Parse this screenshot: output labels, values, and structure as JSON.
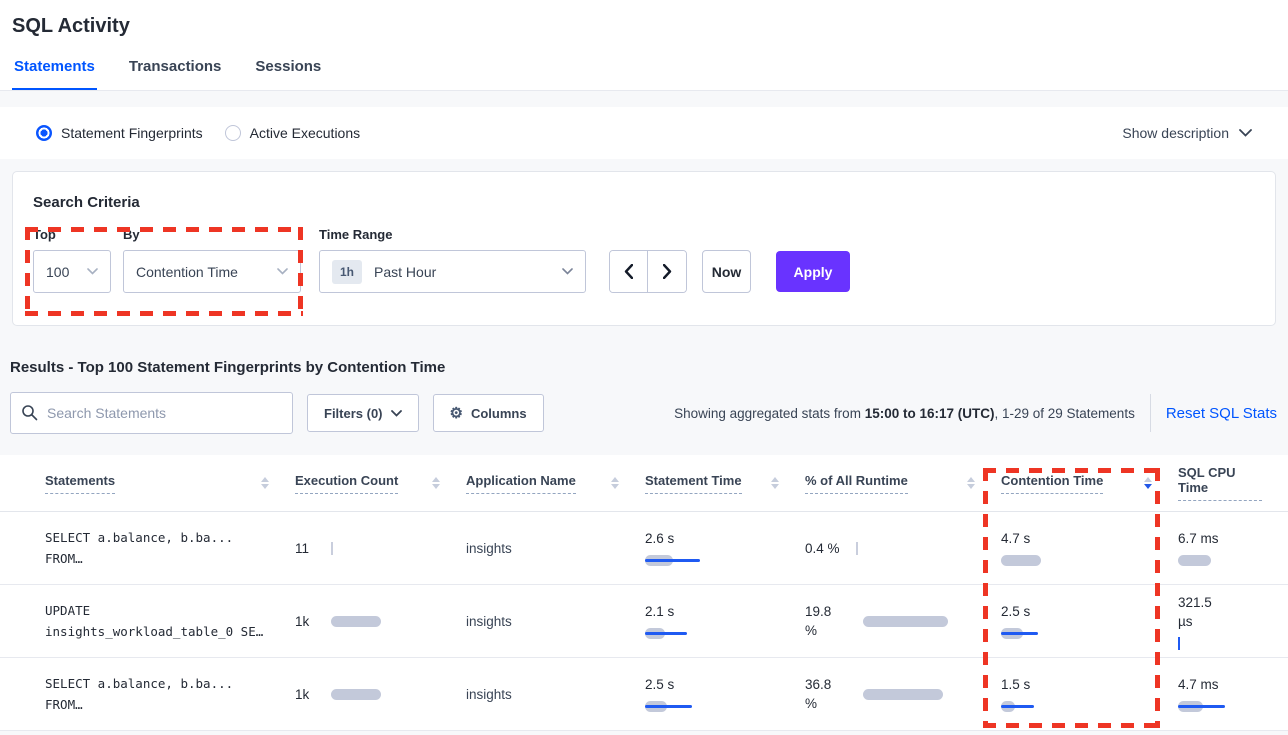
{
  "page_title": "SQL Activity",
  "tabs": [
    {
      "label": "Statements",
      "active": true
    },
    {
      "label": "Transactions",
      "active": false
    },
    {
      "label": "Sessions",
      "active": false
    }
  ],
  "view_toggle": {
    "options": [
      {
        "label": "Statement Fingerprints",
        "selected": true
      },
      {
        "label": "Active Executions",
        "selected": false
      }
    ],
    "show_description_label": "Show description"
  },
  "search_criteria": {
    "heading": "Search Criteria",
    "top_label": "Top",
    "top_value": "100",
    "by_label": "By",
    "by_value": "Contention Time",
    "time_range_label": "Time Range",
    "time_range_badge": "1h",
    "time_range_value": "Past Hour",
    "now_label": "Now",
    "apply_label": "Apply"
  },
  "results": {
    "heading": "Results - Top 100 Statement Fingerprints by Contention Time",
    "search_placeholder": "Search Statements",
    "filters_label": "Filters (0)",
    "columns_label": "Columns",
    "stats_prefix": "Showing aggregated stats from ",
    "stats_bold": "15:00 to 16:17 (UTC)",
    "stats_suffix": ", 1-29 of 29 Statements",
    "reset_label": "Reset SQL Stats"
  },
  "table": {
    "headers": [
      {
        "label": "Statements",
        "sort": "none"
      },
      {
        "label": "Execution Count",
        "sort": "none"
      },
      {
        "label": "Application Name",
        "sort": "none"
      },
      {
        "label": "Statement Time",
        "sort": "none"
      },
      {
        "label": "% of All Runtime",
        "sort": "none"
      },
      {
        "label": "Contention Time",
        "sort": "desc"
      },
      {
        "label": "SQL CPU Time",
        "sort": "none",
        "icon": false
      }
    ],
    "rows": [
      {
        "statement_line1": "SELECT a.balance, b.ba...",
        "statement_line2": "FROM…",
        "execution_count": "11",
        "execution_count_bar": {
          "tick": "gray"
        },
        "application_name": "insights",
        "statement_time": "2.6 s",
        "statement_time_bar": {
          "g": 28,
          "b": 55
        },
        "pct_of_runtime": "0.4 %",
        "pct_of_runtime_bar": {
          "tick": "gray"
        },
        "contention_time": "4.7 s",
        "contention_time_bar": {
          "g": 40,
          "b": 0
        },
        "sql_cpu_time": "6.7 ms",
        "sql_cpu_time_bar": {
          "g": 33,
          "b": 0
        }
      },
      {
        "statement_line1": "UPDATE",
        "statement_line2": "insights_workload_table_0 SE…",
        "execution_count": "1k",
        "execution_count_bar": {
          "g": 50,
          "b": 0
        },
        "application_name": "insights",
        "statement_time": "2.1 s",
        "statement_time_bar": {
          "g": 20,
          "b": 42
        },
        "pct_of_runtime": "19.8 %",
        "pct_of_runtime_bar": {
          "g": 85,
          "b": 0
        },
        "contention_time": "2.5 s",
        "contention_time_bar": {
          "g": 22,
          "b": 37
        },
        "sql_cpu_time": "321.5 µs",
        "sql_cpu_time_bar": {
          "tick": "blue"
        }
      },
      {
        "statement_line1": "SELECT a.balance, b.ba...",
        "statement_line2": "FROM…",
        "execution_count": "1k",
        "execution_count_bar": {
          "g": 50,
          "b": 0
        },
        "application_name": "insights",
        "statement_time": "2.5 s",
        "statement_time_bar": {
          "g": 22,
          "b": 47
        },
        "pct_of_runtime": "36.8 %",
        "pct_of_runtime_bar": {
          "g": 80,
          "b": 0
        },
        "contention_time": "1.5 s",
        "contention_time_bar": {
          "g": 14,
          "b": 33
        },
        "sql_cpu_time": "4.7 ms",
        "sql_cpu_time_bar": {
          "g": 25,
          "b": 47
        }
      }
    ]
  },
  "colors": {
    "accent_blue": "#0055ff",
    "apply_purple": "#6933ff",
    "highlight_red": "#ee3524",
    "bar_gray": "#c3c9da",
    "bar_blue": "#1f5af2"
  }
}
